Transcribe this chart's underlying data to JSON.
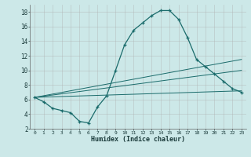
{
  "xlabel": "Humidex (Indice chaleur)",
  "background_color": "#cce8e8",
  "grid_color": "#b8d8d8",
  "line_color": "#1a6b6b",
  "xlim": [
    -0.5,
    23.5
  ],
  "ylim": [
    2,
    19
  ],
  "xticks": [
    0,
    1,
    2,
    3,
    4,
    5,
    6,
    7,
    8,
    9,
    10,
    11,
    12,
    13,
    14,
    15,
    16,
    17,
    18,
    19,
    20,
    21,
    22,
    23
  ],
  "yticks": [
    2,
    4,
    6,
    8,
    10,
    12,
    14,
    16,
    18
  ],
  "line1_x": [
    0,
    1,
    2,
    3,
    4,
    5,
    6,
    7,
    8,
    9,
    10,
    11,
    12,
    13,
    14,
    15,
    16,
    17,
    18,
    19,
    20,
    21,
    22,
    23
  ],
  "line1_y": [
    6.3,
    5.7,
    4.8,
    4.5,
    4.2,
    3.0,
    2.8,
    5.0,
    6.5,
    10.0,
    13.5,
    15.5,
    16.5,
    17.5,
    18.2,
    18.2,
    17.0,
    14.5,
    11.5,
    10.5,
    9.5,
    8.5,
    7.5,
    7.0
  ],
  "line2_x": [
    0,
    23
  ],
  "line2_y": [
    6.3,
    7.2
  ],
  "line3_x": [
    0,
    23
  ],
  "line3_y": [
    6.3,
    10.0
  ],
  "line4_x": [
    0,
    23
  ],
  "line4_y": [
    6.3,
    11.5
  ]
}
